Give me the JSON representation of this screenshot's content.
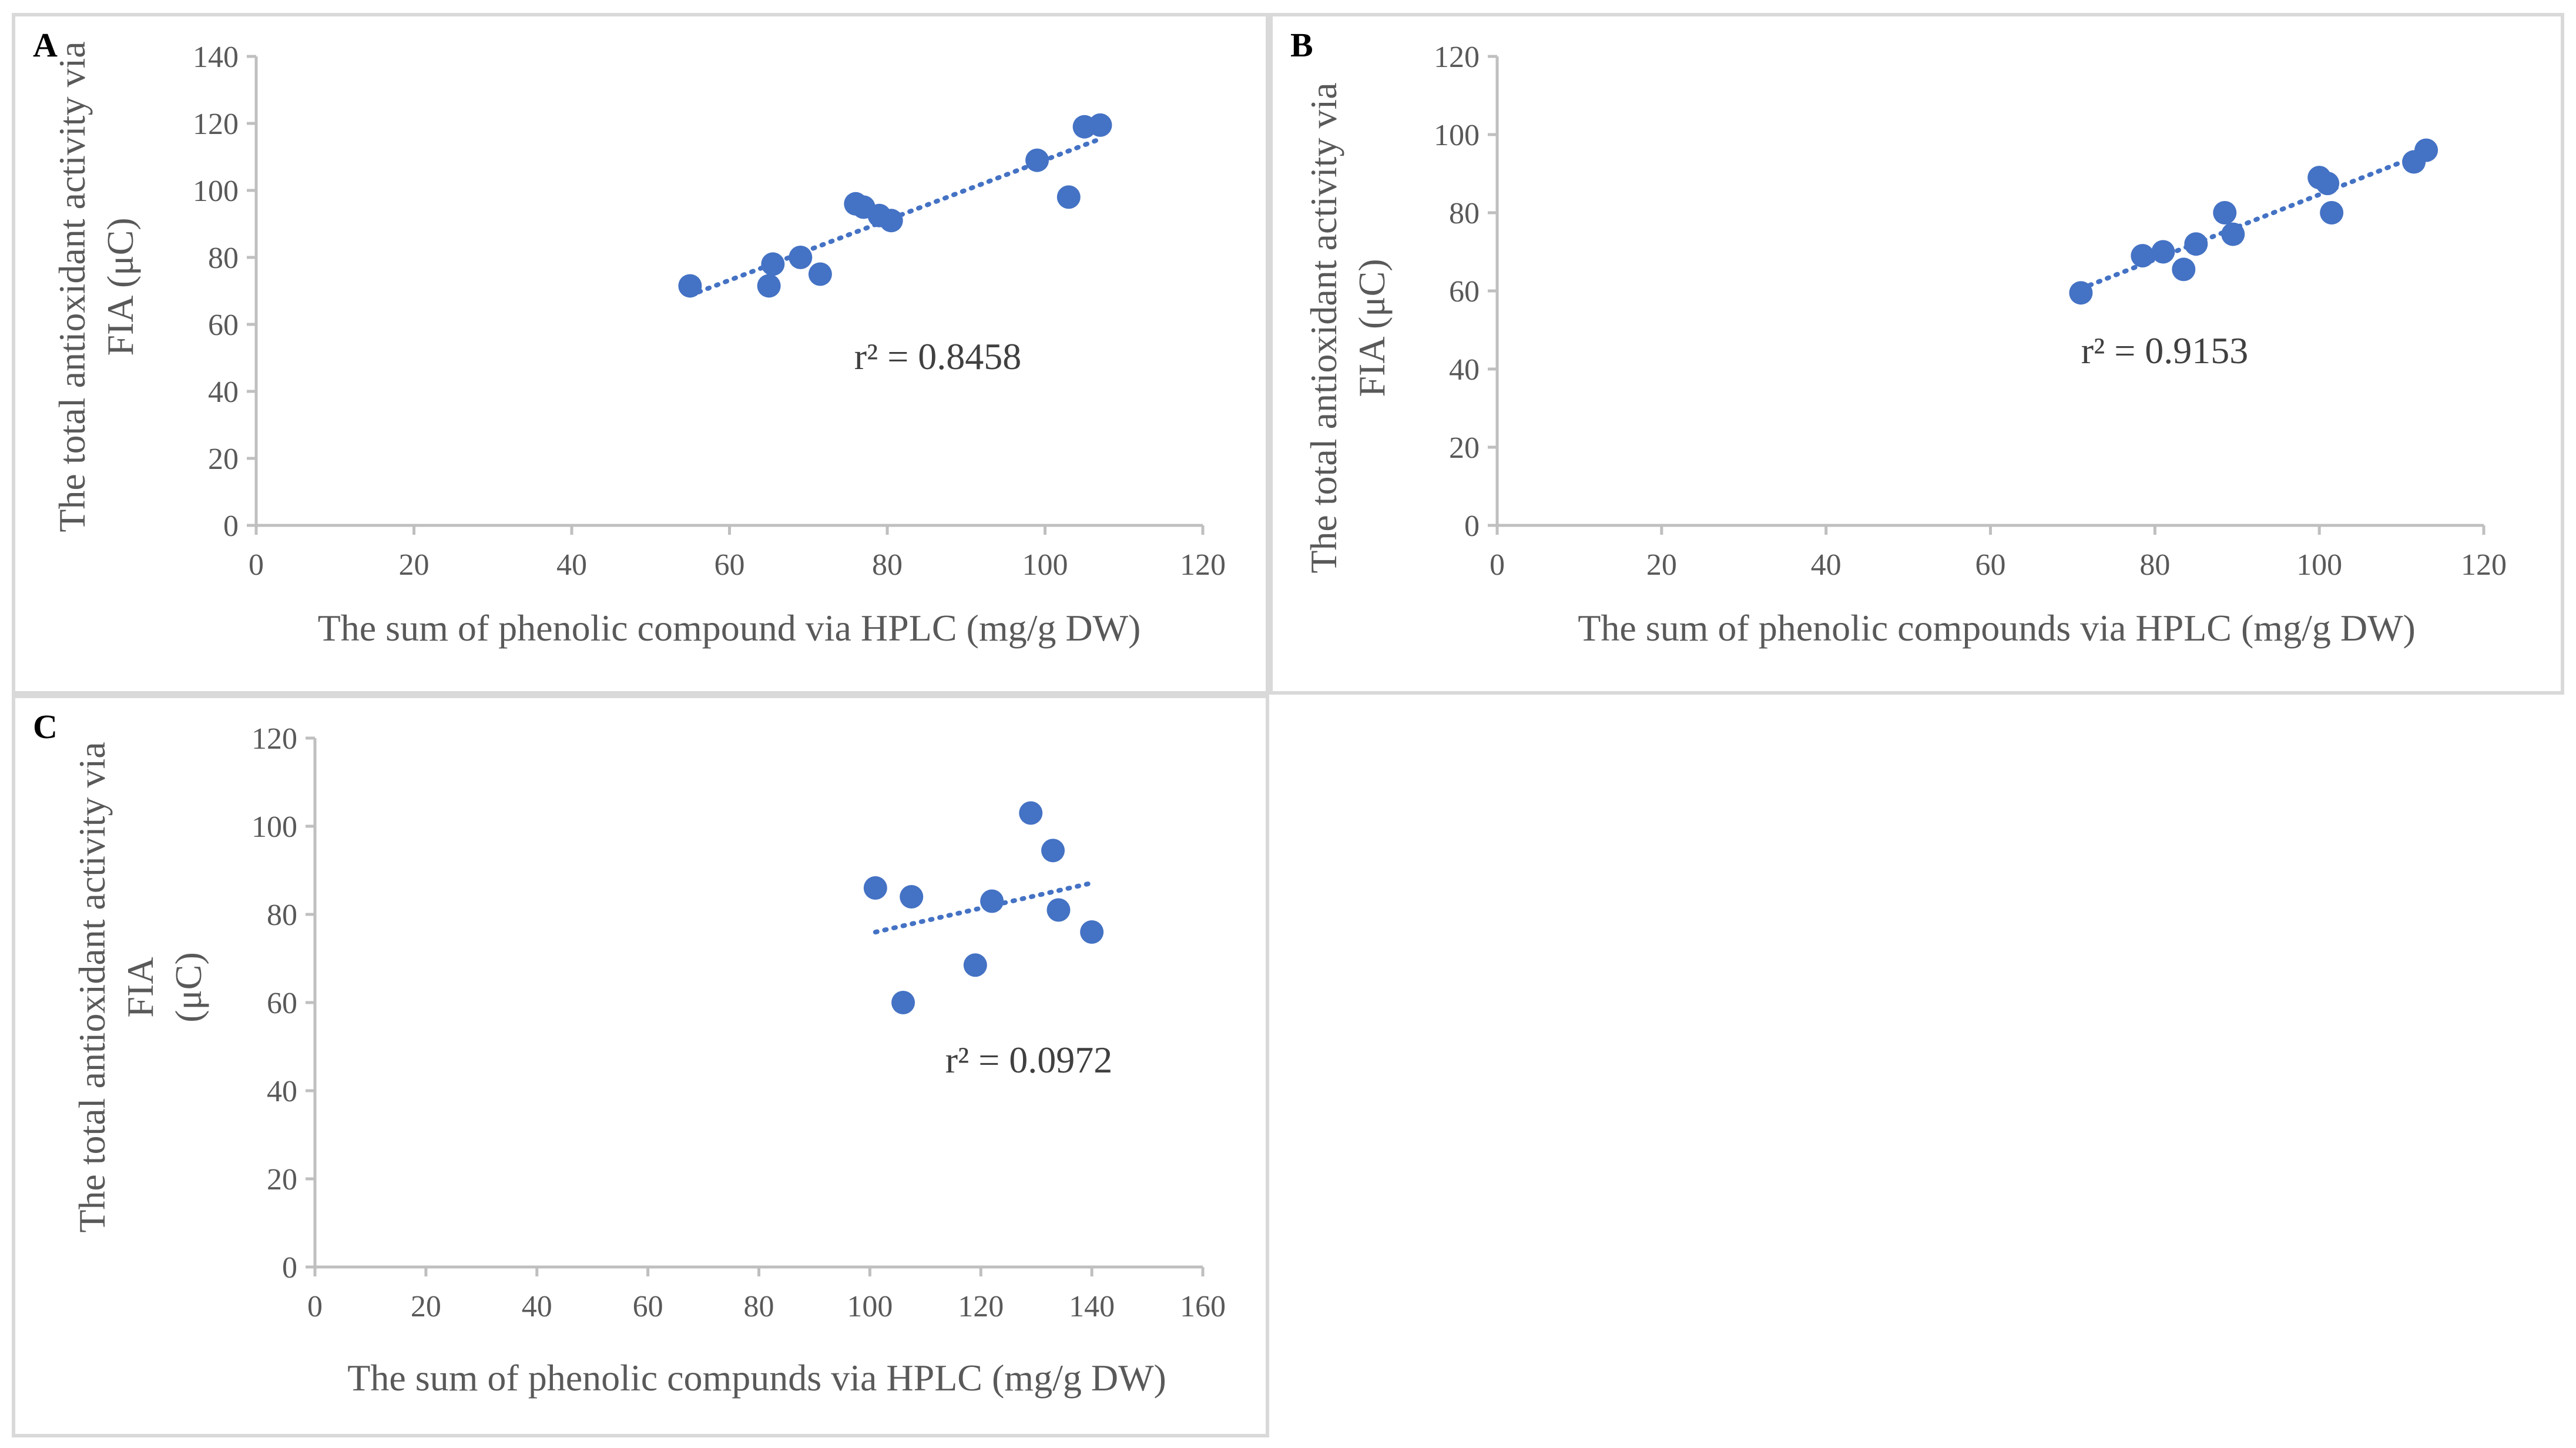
{
  "chart_data": [
    {
      "type": "scatter",
      "panel_label": "A",
      "xlabel": "The sum of phenolic compound via HPLC (mg/g DW)",
      "ylabel": "The total antioxidant activity via FIA (μC)",
      "ylabel_lines": [
        "The total antioxidant activity via",
        "FIA (μC)"
      ],
      "xlim": [
        0,
        120
      ],
      "ylim": [
        0,
        140
      ],
      "xticks": [
        "0",
        "20",
        "40",
        "60",
        "80",
        "100",
        "120"
      ],
      "yticks": [
        "0",
        "20",
        "40",
        "60",
        "80",
        "100",
        "120",
        "140"
      ],
      "annotation": "r² = 0.8458",
      "trendline": "linear",
      "color": "#4472c4",
      "x": [
        55,
        65,
        65.5,
        69,
        71.5,
        76,
        77,
        79,
        80.5,
        99,
        103,
        105,
        107
      ],
      "y": [
        71.5,
        71.5,
        78,
        80,
        75,
        96,
        95,
        92.5,
        91,
        109,
        98,
        119,
        119.5
      ]
    },
    {
      "type": "scatter",
      "panel_label": "B",
      "xlabel": "The sum of phenolic compounds via HPLC (mg/g DW)",
      "ylabel": "The total antioxidant activity via FIA (μC)",
      "ylabel_lines": [
        "The total antioxidant activity via",
        "FIA (μC)"
      ],
      "xlim": [
        0,
        120
      ],
      "ylim": [
        0,
        120
      ],
      "xticks": [
        "0",
        "20",
        "40",
        "60",
        "80",
        "100",
        "120"
      ],
      "yticks": [
        "0",
        "20",
        "40",
        "60",
        "80",
        "100",
        "120"
      ],
      "annotation": "r² = 0.9153",
      "trendline": "linear",
      "color": "#4472c4",
      "x": [
        71,
        78.5,
        81,
        83.5,
        85,
        88.5,
        89.5,
        100,
        101,
        101.5,
        111.5,
        113
      ],
      "y": [
        59.5,
        69,
        70,
        65.5,
        72,
        80,
        74.5,
        89,
        87.5,
        80,
        93,
        96
      ]
    },
    {
      "type": "scatter",
      "panel_label": "C",
      "xlabel": "The sum of phenolic compunds via HPLC (mg/g DW)",
      "ylabel": "The total antioxidant activity via FIA (μC)",
      "ylabel_lines": [
        "The total antioxidant activity via",
        "FIA",
        "(μC)"
      ],
      "xlim": [
        0,
        160
      ],
      "ylim": [
        0,
        120
      ],
      "xticks": [
        "0",
        "20",
        "40",
        "60",
        "80",
        "100",
        "120",
        "140",
        "160"
      ],
      "yticks": [
        "0",
        "20",
        "40",
        "60",
        "80",
        "100",
        "120"
      ],
      "annotation": "r² = 0.0972",
      "trendline": "linear",
      "color": "#4472c4",
      "x": [
        101,
        106,
        107.5,
        119,
        122,
        129,
        133,
        134,
        140
      ],
      "y": [
        86,
        60,
        84,
        68.5,
        83,
        103,
        94.5,
        81,
        76
      ]
    }
  ]
}
